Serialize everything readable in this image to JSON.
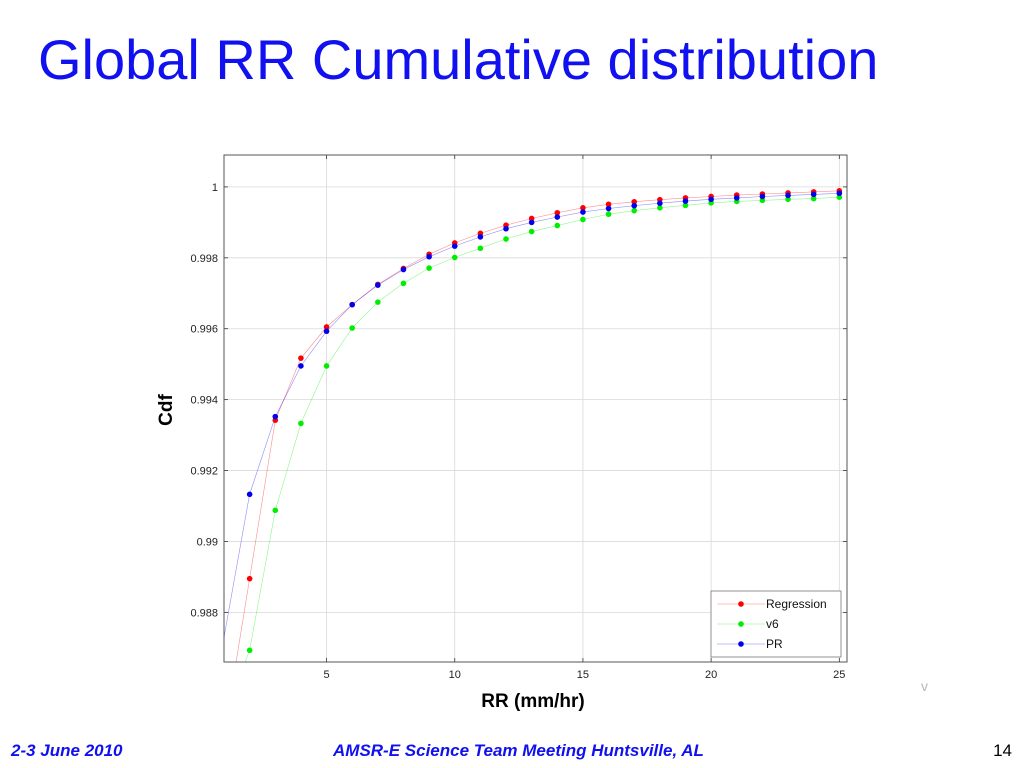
{
  "slide": {
    "title": "Global RR Cumulative distribution",
    "footer_left": "2-3 June 2010",
    "footer_center": "AMSR-E Science Team Meeting  Huntsville, AL",
    "page_number": "14",
    "stray_mark": "v"
  },
  "chart_data": {
    "type": "scatter",
    "title": "",
    "xlabel": "RR (mm/hr)",
    "ylabel": "Cdf",
    "xlim": [
      1,
      25.3
    ],
    "ylim": [
      0.9866,
      1.0009
    ],
    "xticks": [
      5,
      10,
      15,
      20,
      25
    ],
    "yticks": [
      0.988,
      0.99,
      0.992,
      0.994,
      0.996,
      0.998,
      1
    ],
    "ytick_labels": [
      "0.988",
      "0.99",
      "0.992",
      "0.994",
      "0.996",
      "0.998",
      "1"
    ],
    "grid": true,
    "legend_position": "bottom-right",
    "x": [
      2,
      3,
      4,
      5,
      6,
      7,
      8,
      9,
      10,
      11,
      12,
      13,
      14,
      15,
      16,
      17,
      18,
      19,
      20,
      21,
      22,
      23,
      24,
      25
    ],
    "series": [
      {
        "name": "Regression",
        "color": "#ff0000",
        "line_start": [
          1,
          0.9845
        ],
        "values": [
          0.98895,
          0.99342,
          0.99517,
          0.99605,
          0.99668,
          0.99725,
          0.9977,
          0.9981,
          0.99842,
          0.99869,
          0.99892,
          0.99911,
          0.99927,
          0.99941,
          0.99951,
          0.99958,
          0.99964,
          0.99969,
          0.99973,
          0.99977,
          0.9998,
          0.99983,
          0.99986,
          0.99989
        ]
      },
      {
        "name": "v6",
        "color": "#00ee00",
        "line_start": [
          1.6,
          0.9862
        ],
        "values": [
          0.98693,
          0.99088,
          0.99333,
          0.99495,
          0.99602,
          0.99675,
          0.99728,
          0.99771,
          0.99801,
          0.99827,
          0.99853,
          0.99874,
          0.99891,
          0.99908,
          0.99923,
          0.99933,
          0.99941,
          0.99948,
          0.99955,
          0.99959,
          0.99962,
          0.99965,
          0.99967,
          0.99971
        ]
      },
      {
        "name": "PR",
        "color": "#0000ee",
        "line_start": [
          1,
          0.9873
        ],
        "values": [
          0.99133,
          0.99352,
          0.99495,
          0.99593,
          0.99668,
          0.99723,
          0.99767,
          0.99803,
          0.99833,
          0.99859,
          0.99882,
          0.999,
          0.99915,
          0.99929,
          0.99939,
          0.99947,
          0.99954,
          0.9996,
          0.99965,
          0.99969,
          0.99973,
          0.99976,
          0.99979,
          0.99982
        ]
      }
    ]
  }
}
